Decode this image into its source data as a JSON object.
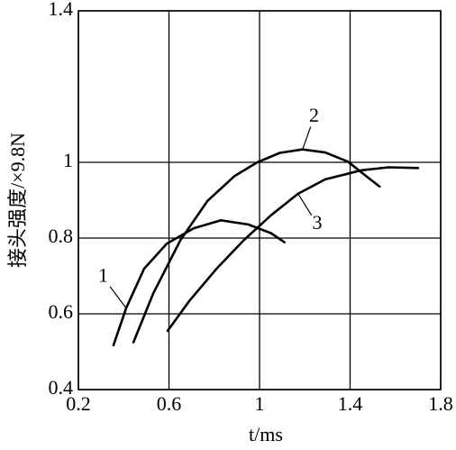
{
  "chart_data": {
    "type": "line",
    "x_label": "t/ms",
    "y_label": "接头强度/×9.8N",
    "xlim": [
      0.2,
      1.8
    ],
    "xticks": [
      0.2,
      0.6,
      1.0,
      1.4,
      1.8
    ],
    "ylim": [
      0.4,
      1.4
    ],
    "yticks": [
      0.4,
      0.6,
      0.8,
      1.0,
      1.4
    ],
    "grid": true,
    "series": [
      {
        "name": "1",
        "color": "#000000",
        "x": [
          0.355,
          0.411,
          0.49,
          0.59,
          0.71,
          0.83,
          0.95,
          1.05,
          1.11
        ],
        "values": [
          0.517,
          0.615,
          0.719,
          0.785,
          0.826,
          0.847,
          0.836,
          0.813,
          0.789
        ]
      },
      {
        "name": "2",
        "color": "#000000",
        "x": [
          0.443,
          0.53,
          0.65,
          0.77,
          0.89,
          0.99,
          1.09,
          1.19,
          1.29,
          1.39,
          1.47,
          1.53
        ],
        "values": [
          0.525,
          0.653,
          0.794,
          0.898,
          0.964,
          1.0,
          1.025,
          1.034,
          1.026,
          1.002,
          0.964,
          0.936
        ]
      },
      {
        "name": "3",
        "color": "#000000",
        "x": [
          0.594,
          0.69,
          0.81,
          0.93,
          1.05,
          1.17,
          1.29,
          1.45,
          1.57,
          1.7
        ],
        "values": [
          0.555,
          0.634,
          0.719,
          0.794,
          0.86,
          0.917,
          0.955,
          0.979,
          0.987,
          0.985
        ]
      }
    ]
  }
}
